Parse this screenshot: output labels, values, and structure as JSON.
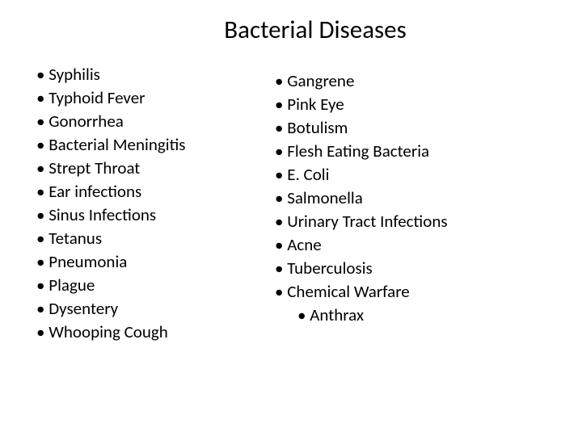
{
  "slide": {
    "title": "Bacterial Diseases",
    "bullet": "•",
    "background_color": "#ffffff",
    "text_color": "#000000",
    "title_fontsize": 31,
    "item_fontsize": 21,
    "left_column": [
      "Syphilis",
      "Typhoid Fever",
      "Gonorrhea",
      "Bacterial Meningitis",
      "Strept Throat",
      "Ear infections",
      "Sinus Infections",
      "Tetanus",
      "Pneumonia",
      "Plague",
      "Dysentery",
      "Whooping Cough"
    ],
    "right_column": [
      "Gangrene",
      "Pink Eye",
      "Botulism",
      "Flesh Eating Bacteria",
      "E. Coli",
      "Salmonella",
      "Urinary Tract Infections",
      "Acne",
      "Tuberculosis",
      "Chemical Warfare"
    ],
    "right_column_sub": [
      "Anthrax"
    ]
  }
}
